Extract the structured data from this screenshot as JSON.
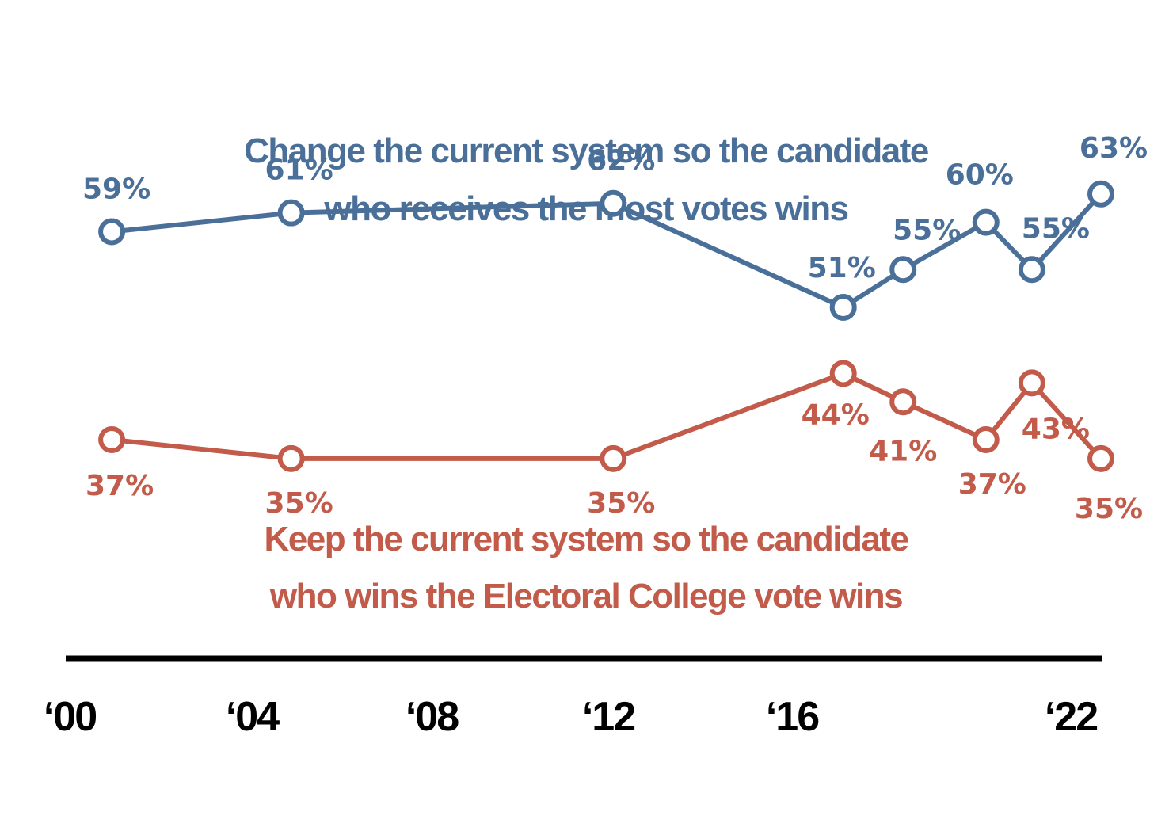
{
  "chart_data": {
    "type": "line",
    "x": [
      2001,
      2004.9,
      2011.9,
      2016.9,
      2018.2,
      2020.0,
      2021.0,
      2022.5
    ],
    "series": [
      {
        "name": "Change the current system so the candidate who receives the most votes wins",
        "name_lines": [
          "Change the current system so the candidate",
          "who receives the most votes wins"
        ],
        "color": "#4a7099",
        "values": [
          59,
          61,
          62,
          51,
          55,
          60,
          55,
          63
        ],
        "labels": [
          "59%",
          "61%",
          "62%",
          "51%",
          "55%",
          "60%",
          "55%",
          "63%"
        ]
      },
      {
        "name": "Keep the current system so the candidate who wins the Electoral College vote wins",
        "name_lines": [
          "Keep the current system so the candidate",
          "who wins the Electoral College vote wins"
        ],
        "color": "#c25b4a",
        "values": [
          37,
          35,
          35,
          44,
          41,
          37,
          43,
          35
        ],
        "labels": [
          "37%",
          "35%",
          "35%",
          "44%",
          "41%",
          "37%",
          "43%",
          "35%"
        ]
      }
    ],
    "x_ticks": [
      {
        "value": 2000,
        "label": "‘00"
      },
      {
        "value": 2004,
        "label": "‘04"
      },
      {
        "value": 2008,
        "label": "‘08"
      },
      {
        "value": 2012,
        "label": "‘12"
      },
      {
        "value": 2016,
        "label": "‘16"
      },
      {
        "value": 2022,
        "label": "‘22"
      }
    ],
    "xlim": [
      2000,
      2022.5
    ],
    "ylim": [
      30,
      65
    ],
    "grid": false,
    "axis_color": "#000000"
  }
}
